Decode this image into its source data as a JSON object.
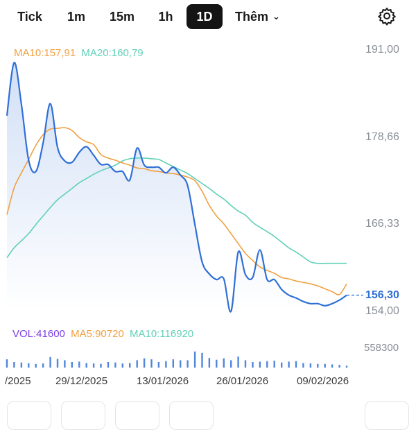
{
  "tabs": [
    {
      "label": "Tick"
    },
    {
      "label": "1m"
    },
    {
      "label": "15m"
    },
    {
      "label": "1h"
    },
    {
      "label": "1D",
      "active": true
    },
    {
      "label": "Thêm"
    }
  ],
  "colors": {
    "price": "#2f6fd6",
    "ma10": "#f0a040",
    "ma20": "#5fd0b6",
    "vol": "#7b3fe4",
    "vol_ma5": "#f0a040",
    "vol_ma10": "#5fd0b6"
  },
  "legend": {
    "ma10": "MA10:157,91",
    "ma20": "MA20:160,79",
    "vol": "VOL:41600",
    "vol_ma5": "MA5:90720",
    "vol_ma10": "MA10:116920"
  },
  "chart_data": {
    "type": "line",
    "y_axis_labels": [
      "191,00",
      "178,66",
      "166,33",
      "154,00"
    ],
    "current_price_label": "156,30",
    "volume_axis_label": "558300",
    "x_tick_labels": [
      "/2025",
      "29/12/2025",
      "13/01/2026",
      "26/01/2026",
      "09/02/2026"
    ],
    "ylim": [
      154.0,
      191.0
    ],
    "current_price": 156.3,
    "series": [
      {
        "key": "price",
        "values": [
          181.7,
          189.2,
          183.3,
          175.4,
          173.8,
          177.8,
          183.4,
          177.2,
          175.3,
          175.1,
          176.5,
          177.3,
          176.1,
          174.8,
          174.8,
          173.8,
          173.8,
          172.6,
          177.1,
          174.7,
          174.4,
          174.4,
          173.6,
          174.4,
          173.3,
          171.8,
          166.3,
          161.0,
          159.3,
          158.5,
          158.6,
          154.0,
          162.4,
          159.2,
          158.8,
          162.7,
          158.5,
          158.5,
          157.1,
          156.3,
          155.9,
          155.4,
          155.1,
          155.1,
          154.8,
          155.1,
          155.6,
          156.3
        ]
      },
      {
        "key": "ma10",
        "values": [
          167.7,
          171.5,
          173.6,
          175.5,
          177.5,
          179.0,
          179.8,
          179.9,
          180.0,
          179.6,
          178.6,
          178.0,
          177.6,
          176.2,
          175.7,
          175.4,
          175.0,
          174.7,
          174.3,
          174.2,
          173.9,
          173.8,
          173.6,
          173.5,
          173.3,
          173.0,
          172.5,
          171.0,
          169.0,
          167.5,
          166.4,
          165.0,
          163.6,
          162.2,
          161.2,
          160.3,
          159.8,
          159.4,
          158.8,
          158.6,
          158.3,
          158.1,
          157.9,
          157.6,
          157.2,
          156.8,
          156.4,
          157.9
        ]
      },
      {
        "key": "ma20",
        "values": [
          161.6,
          163.0,
          164.0,
          165.0,
          166.3,
          167.5,
          168.7,
          169.8,
          170.6,
          171.4,
          172.2,
          172.8,
          173.4,
          173.9,
          174.3,
          174.7,
          175.3,
          175.6,
          175.7,
          175.7,
          175.6,
          175.5,
          175.0,
          174.5,
          174.0,
          173.5,
          172.8,
          172.1,
          171.4,
          170.6,
          169.9,
          169.0,
          168.2,
          167.6,
          166.6,
          165.9,
          165.3,
          164.6,
          163.8,
          163.0,
          162.4,
          161.7,
          161.0,
          160.8,
          160.8,
          160.8,
          160.8,
          160.8
        ]
      }
    ],
    "volume": {
      "max": 558300,
      "values": [
        180000,
        120000,
        110000,
        95000,
        80000,
        90000,
        230000,
        190000,
        160000,
        120000,
        130000,
        100000,
        90000,
        80000,
        120000,
        110000,
        90000,
        100000,
        160000,
        200000,
        180000,
        120000,
        140000,
        180000,
        160000,
        160000,
        350000,
        320000,
        210000,
        170000,
        200000,
        160000,
        240000,
        160000,
        120000,
        130000,
        140000,
        150000,
        110000,
        130000,
        140000,
        100000,
        90000,
        80000,
        80000,
        70000,
        60000,
        41600
      ]
    }
  }
}
